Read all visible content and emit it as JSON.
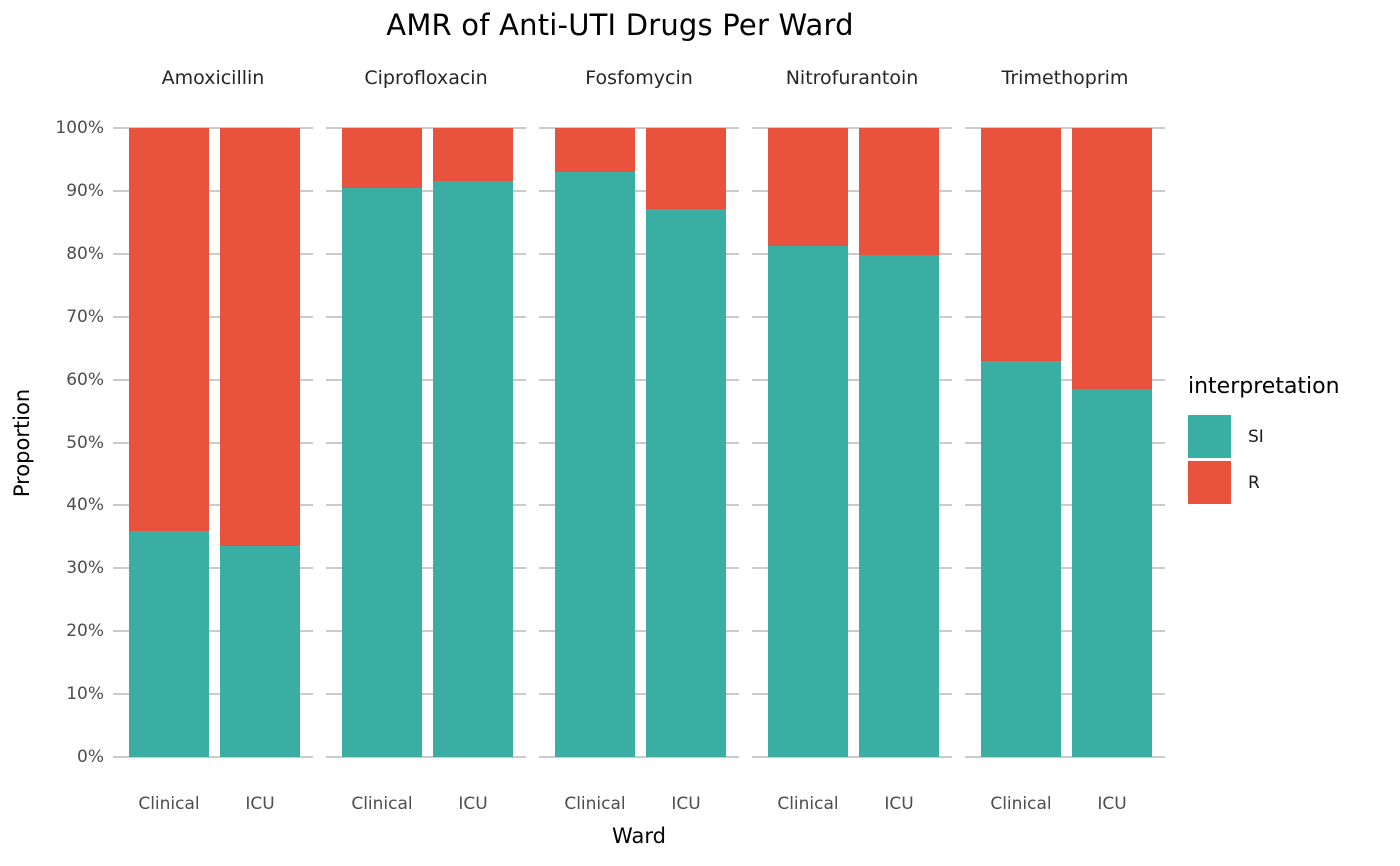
{
  "legend": {
    "title": "interpretation",
    "entries": [
      {
        "label": "SI",
        "color": "#3BAEA3"
      },
      {
        "label": "R",
        "color": "#E9533D"
      }
    ]
  },
  "colors": {
    "si": "#3BAEA3",
    "r": "#E9533D",
    "gridline": "#CBCBCB",
    "tick_text": "#4D4D4D",
    "facet_text": "#262626",
    "background": "#FFFFFF"
  },
  "axes": {
    "y_ticks": [
      "0%",
      "10%",
      "20%",
      "30%",
      "40%",
      "50%",
      "60%",
      "70%",
      "80%",
      "90%",
      "100%"
    ],
    "x_categories": [
      "Clinical",
      "ICU"
    ]
  },
  "chart_data": {
    "type": "bar",
    "stacked": true,
    "title": "AMR of Anti-UTI Drugs Per Ward",
    "xlabel": "Ward",
    "ylabel": "Proportion",
    "ylim": [
      0,
      1
    ],
    "y_format": "percent",
    "grid": true,
    "legend_position": "right",
    "series_names": [
      "SI",
      "R"
    ],
    "facets": [
      {
        "drug": "Amoxicillin",
        "bars": [
          {
            "ward": "Clinical",
            "SI": 0.36,
            "R": 0.64
          },
          {
            "ward": "ICU",
            "SI": 0.335,
            "R": 0.665
          }
        ]
      },
      {
        "drug": "Ciprofloxacin",
        "bars": [
          {
            "ward": "Clinical",
            "SI": 0.905,
            "R": 0.095
          },
          {
            "ward": "ICU",
            "SI": 0.915,
            "R": 0.085
          }
        ]
      },
      {
        "drug": "Fosfomycin",
        "bars": [
          {
            "ward": "Clinical",
            "SI": 0.93,
            "R": 0.07
          },
          {
            "ward": "ICU",
            "SI": 0.872,
            "R": 0.128
          }
        ]
      },
      {
        "drug": "Nitrofurantoin",
        "bars": [
          {
            "ward": "Clinical",
            "SI": 0.813,
            "R": 0.187
          },
          {
            "ward": "ICU",
            "SI": 0.798,
            "R": 0.202
          }
        ]
      },
      {
        "drug": "Trimethoprim",
        "bars": [
          {
            "ward": "Clinical",
            "SI": 0.63,
            "R": 0.37
          },
          {
            "ward": "ICU",
            "SI": 0.585,
            "R": 0.415
          }
        ]
      }
    ]
  }
}
